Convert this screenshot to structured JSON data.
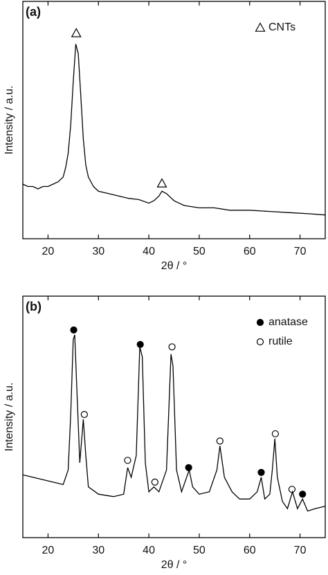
{
  "chart_data": [
    {
      "type": "line",
      "label": "(a)",
      "xlabel": "2θ / °",
      "ylabel": "Intensity / a.u.",
      "xlim": [
        15,
        75
      ],
      "xticks": [
        20,
        30,
        40,
        50,
        60,
        70
      ],
      "ylim": [
        0,
        100
      ],
      "legend": "upper right",
      "series": [
        {
          "color": "#000000",
          "x": [
            15,
            16,
            17,
            18,
            19,
            20,
            21,
            22,
            23,
            23.5,
            24,
            24.5,
            25,
            25.5,
            26,
            26.5,
            27,
            27.5,
            28,
            29,
            30,
            32,
            34,
            36,
            38,
            40,
            41,
            42,
            42.6,
            43.5,
            45,
            47,
            50,
            53,
            56,
            60,
            64,
            68,
            72,
            75
          ],
          "values": [
            23,
            22,
            22,
            21,
            22,
            22,
            23,
            24,
            26,
            30,
            36,
            48,
            66,
            82,
            78,
            60,
            42,
            31,
            26,
            22,
            20,
            19,
            18,
            17,
            16.5,
            15,
            16,
            18,
            20,
            19,
            16,
            14,
            13,
            13,
            12,
            12,
            11.5,
            11,
            10.5,
            10
          ]
        },
        {
          "name": "CNTs",
          "marker": "triangle",
          "filled": false,
          "color": "#000000",
          "x": [
            25.6,
            42.6
          ],
          "values": [
            86.6,
            23.3
          ]
        }
      ]
    },
    {
      "type": "line",
      "label": "(b)",
      "xlabel": "2θ / °",
      "ylabel": "Intensity / a.u.",
      "xlim": [
        15,
        75
      ],
      "xticks": [
        20,
        30,
        40,
        50,
        60,
        70
      ],
      "ylim": [
        0,
        100
      ],
      "legend": "upper right",
      "series": [
        {
          "color": "#000000",
          "x": [
            15,
            17,
            20,
            23,
            24,
            24.5,
            25,
            25.3,
            25.8,
            26.3,
            27,
            27.5,
            28,
            30,
            33,
            35,
            35.8,
            36.5,
            37.5,
            38.2,
            38.7,
            39.3,
            40,
            41,
            42,
            43.5,
            44.4,
            44.8,
            45.5,
            46.5,
            47.5,
            48,
            48.7,
            50,
            52,
            53.5,
            54.1,
            55,
            56.5,
            58,
            60,
            61.5,
            62.3,
            63,
            64,
            64.5,
            65,
            65.5,
            66.5,
            67.5,
            68.5,
            69.5,
            70.5,
            71.5,
            73,
            75
          ],
          "values": [
            26,
            25,
            23.5,
            22,
            28,
            51,
            82,
            84,
            57,
            31,
            49,
            34,
            21,
            18,
            17,
            18,
            29,
            25,
            34,
            79,
            75,
            31,
            19,
            21,
            19,
            28,
            76,
            71,
            28,
            19,
            25,
            28,
            21,
            18,
            19,
            28,
            38,
            25,
            19,
            16,
            16,
            19,
            25,
            16,
            18,
            28,
            41,
            25,
            15,
            12,
            19,
            12,
            16,
            11,
            12,
            13
          ]
        },
        {
          "name": "anatase",
          "marker": "circle",
          "filled": true,
          "color": "#000000",
          "x": [
            25.1,
            38.3,
            47.9,
            62.3,
            70.5
          ],
          "values": [
            86,
            80,
            29,
            27,
            18
          ]
        },
        {
          "name": "rutile",
          "marker": "circle",
          "filled": false,
          "color": "#000000",
          "x": [
            27.2,
            35.8,
            41.2,
            44.6,
            54.1,
            65.1,
            68.4
          ],
          "values": [
            51,
            32,
            23,
            79,
            40,
            43,
            20
          ]
        }
      ]
    }
  ]
}
